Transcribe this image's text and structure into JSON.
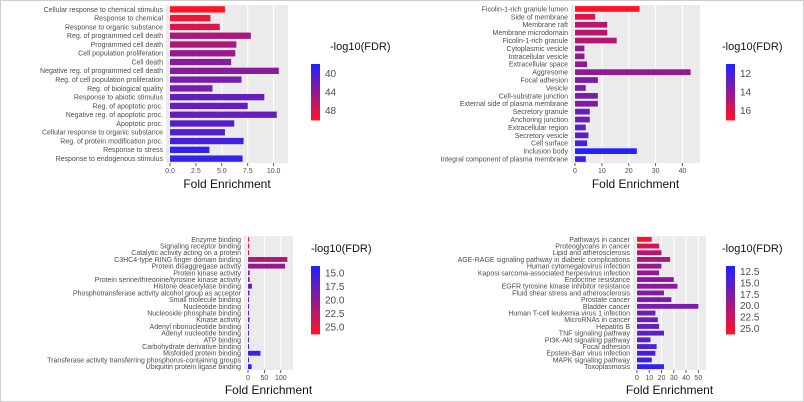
{
  "chart_data": [
    {
      "type": "bar",
      "orientation": "horizontal",
      "xlabel": "Fold Enrichment",
      "ylabel": "",
      "xlim": [
        0,
        11
      ],
      "xticks": [
        0.0,
        2.5,
        5.0,
        7.5,
        10.0
      ],
      "xtick_labels": [
        "0.0",
        "2.5",
        "5.0",
        "7.5",
        "10.0"
      ],
      "legend_title": "-log10(FDR)",
      "legend_ticks": [
        "40",
        "44",
        "48"
      ],
      "color_range": [
        37,
        50
      ],
      "categories": [
        "Cellular response to chemical stimulus",
        "Response to chemical",
        "Response to organic substance",
        "Reg. of programmed cell death",
        "Programmed cell death",
        "Cell population proliferation",
        "Cell death",
        "Negative reg. of programmed cell death",
        "Reg. of cell population proliferation",
        "Reg. of biological quality",
        "Response to abiotic stimulus",
        "Reg. of apoptotic proc.",
        "Negative reg. of apoptotic proc.",
        "Apoptotic proc.",
        "Cellular response to organic substance",
        "Reg. of protein modification proc.",
        "Response to stress",
        "Response to endogenous stimulus"
      ],
      "values": [
        5.3,
        3.9,
        4.8,
        7.8,
        6.4,
        6.3,
        5.9,
        10.5,
        6.9,
        4.1,
        9.1,
        7.5,
        10.3,
        6.2,
        5.3,
        7.1,
        3.8,
        7.0
      ],
      "fdr": [
        50,
        49,
        48,
        45,
        45,
        44,
        43,
        43,
        42,
        42,
        41,
        41,
        41,
        40,
        40,
        39,
        38,
        38
      ]
    },
    {
      "type": "bar",
      "orientation": "horizontal",
      "xlabel": "Fold Enrichment",
      "ylabel": "",
      "xlim": [
        0,
        45
      ],
      "xticks": [
        0,
        10,
        20,
        30,
        40
      ],
      "xtick_labels": [
        "0",
        "10",
        "20",
        "30",
        "40"
      ],
      "legend_title": "-log10(FDR)",
      "legend_ticks": [
        "12",
        "14",
        "16"
      ],
      "color_range": [
        11,
        17
      ],
      "categories": [
        "Ficolin-1-rich granule lumen",
        "Side of membrane",
        "Membrane raft",
        "Membrane microdomain",
        "Ficolin-1-rich granule",
        "Cytoplasmic vesicle",
        "Intracellular vesicle",
        "Extracellular space",
        "Aggresome",
        "Focal adhesion",
        "Vesicle",
        "Cell-substrate junction",
        "External side of plasma membrane",
        "Secretory granule",
        "Anchoring junction",
        "Extracellular region",
        "Secretory vesicle",
        "Cell surface",
        "Inclusion body",
        "Integral component of plasma membrane"
      ],
      "values": [
        24,
        7.5,
        12,
        12,
        15.5,
        3.5,
        3.5,
        4.5,
        43,
        8.5,
        4,
        8.5,
        8.5,
        5.5,
        5.5,
        4,
        5,
        4.5,
        23,
        4
      ],
      "fdr": [
        17,
        16,
        15,
        15,
        15,
        14,
        14,
        14,
        14,
        13.5,
        13.5,
        13.5,
        13.5,
        13,
        13,
        12.5,
        12.5,
        12,
        11,
        11.5
      ]
    },
    {
      "type": "bar",
      "orientation": "horizontal",
      "xlabel": "Fold Enrichment",
      "ylabel": "",
      "xlim": [
        0,
        125
      ],
      "xticks": [
        0,
        50,
        100
      ],
      "xtick_labels": [
        "0",
        "50",
        "100"
      ],
      "legend_title": "-log10(FDR)",
      "legend_ticks": [
        "15.0",
        "17.5",
        "20.0",
        "22.5",
        "25.0"
      ],
      "color_range": [
        13,
        26
      ],
      "categories": [
        "Enzyme binding",
        "Signaling receptor binding",
        "Catalytic activity acting on a protein",
        "C3HC4-type RING finger domain binding",
        "Protein disaggregase activity",
        "Protein kinase activity",
        "Protein serine/threonine/tyrosine kinase activity",
        "Histone deacetylase binding",
        "Phosphotransferase activity alcohol group as acceptor",
        "Small molecule binding",
        "Nucleotide binding",
        "Nucleoside phosphate binding",
        "Kinase activity",
        "Adenyl ribonucleotide binding",
        "Adenyl nucleotide binding",
        "ATP binding",
        "Carbohydrate derivative binding",
        "Misfolded protein binding",
        "Transferase activity transferring phosphorus-containing groups",
        "Ubiquitin protein ligase binding"
      ],
      "values": [
        2.5,
        2,
        2,
        120,
        113,
        5,
        5,
        12,
        4.5,
        2,
        2,
        2,
        4.5,
        3,
        3,
        3,
        2,
        38,
        3,
        11
      ],
      "fdr": [
        26,
        25,
        24,
        21,
        20,
        19,
        18,
        17,
        17,
        17,
        16.5,
        16.5,
        16,
        16,
        16,
        15.5,
        15,
        14.5,
        14,
        13.5
      ]
    },
    {
      "type": "bar",
      "orientation": "horizontal",
      "xlabel": "Fold Enrichment",
      "ylabel": "",
      "xlim": [
        0,
        53
      ],
      "xticks": [
        0,
        10,
        20,
        30,
        40,
        50
      ],
      "xtick_labels": [
        "0",
        "10",
        "20",
        "30",
        "40",
        "50"
      ],
      "legend_title": "-log10(FDR)",
      "legend_ticks": [
        "12.5",
        "15.0",
        "17.5",
        "20.0",
        "22.5",
        "25.0"
      ],
      "color_range": [
        11,
        26
      ],
      "categories": [
        "Pathways in cancer",
        "Proteoglycans in cancer",
        "Lipid and atherosclerosis",
        "AGE-RAGE signaling pathway in diabetic complications",
        "Human cytomegalovirus infection",
        "Kaposi sarcoma-associated herpesvirus infection",
        "Endocrine resistance",
        "EGFR tyrosine kinase inhibitor resistance",
        "Fluid shear stress and atherosclerosis",
        "Prostate cancer",
        "Bladder cancer",
        "Human T-cell leukemia virus 1 infection",
        "MicroRNAs in cancer",
        "Hepatitis B",
        "TNF signaling pathway",
        "PI3K-Akt signaling pathway",
        "Focal adhesion",
        "Epstein-Barr virus infection",
        "MAPK signaling pathway",
        "Toxoplasmosis"
      ],
      "values": [
        12,
        18,
        20,
        27,
        20,
        18,
        30,
        33,
        22,
        28,
        50,
        15,
        17,
        18,
        22,
        11,
        16,
        15,
        12,
        22
      ],
      "fdr": [
        26,
        23,
        21,
        20,
        19,
        18.5,
        18,
        18,
        17.5,
        17,
        17,
        16,
        16,
        15.5,
        15,
        15,
        14,
        13.5,
        13,
        12
      ]
    }
  ]
}
